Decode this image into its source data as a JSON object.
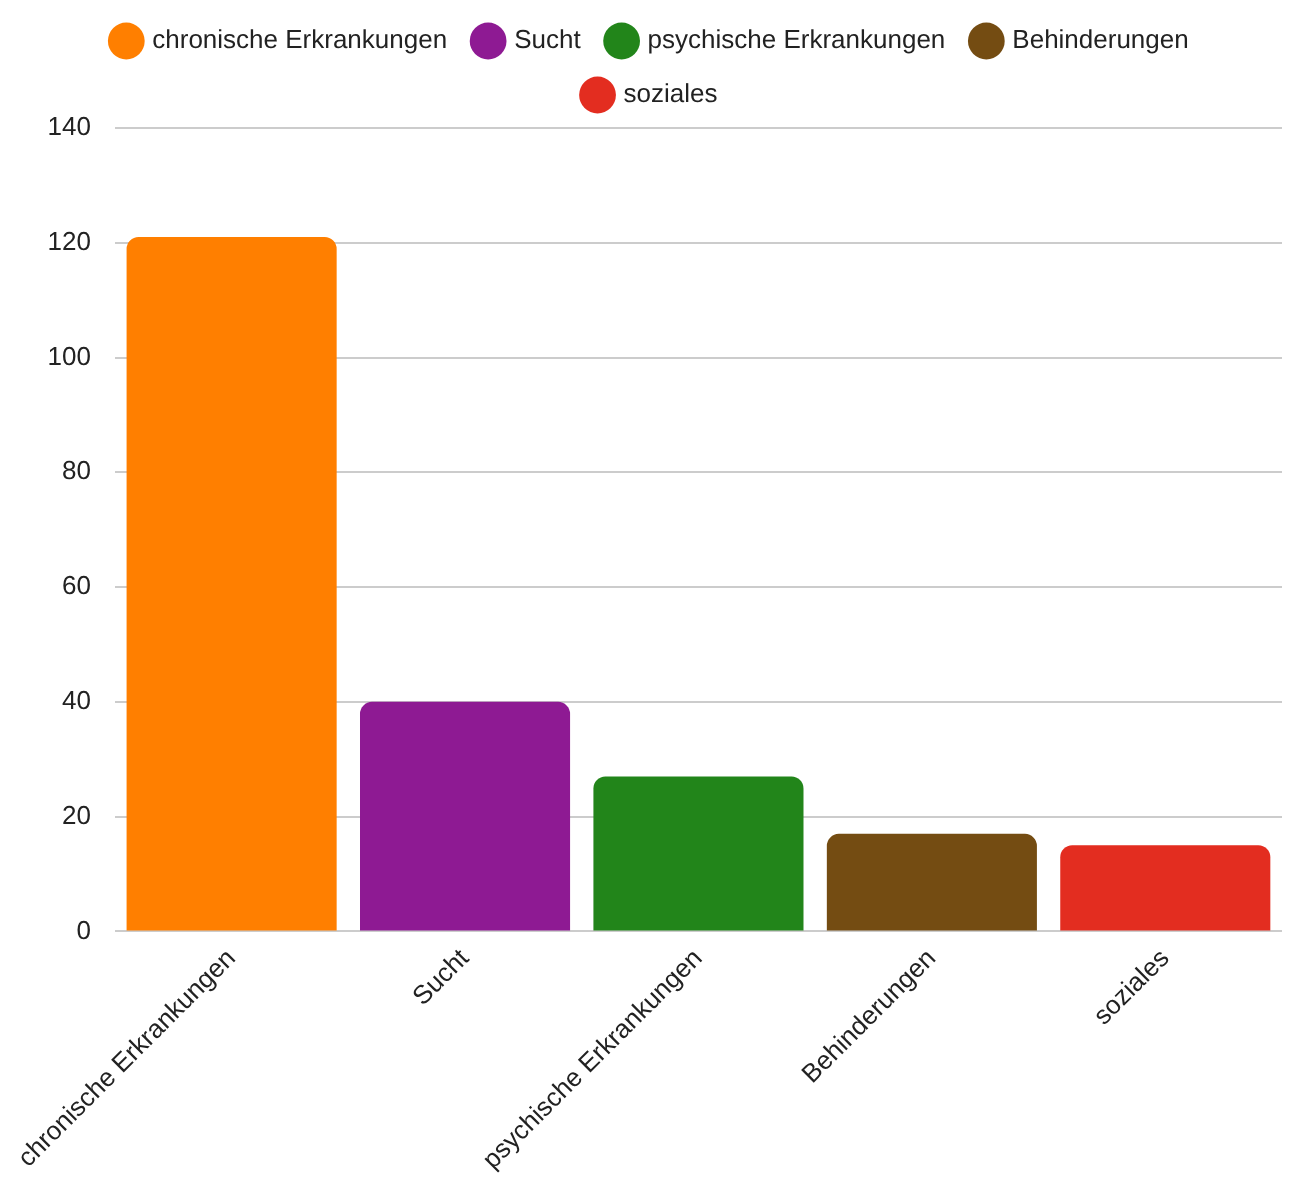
{
  "chart_data": {
    "type": "bar",
    "categories": [
      "chronische Erkrankungen",
      "Sucht",
      "psychische Erkrankungen",
      "Behinderungen",
      "soziales"
    ],
    "series": [
      {
        "name": "chronische Erkrankungen",
        "color": "#ff7f00",
        "values": [
          121,
          null,
          null,
          null,
          null
        ]
      },
      {
        "name": "Sucht",
        "color": "#8e1a93",
        "values": [
          null,
          40,
          null,
          null,
          null
        ]
      },
      {
        "name": "psychische Erkrankungen",
        "color": "#22851a",
        "values": [
          null,
          null,
          27,
          null,
          null
        ]
      },
      {
        "name": "Behinderungen",
        "color": "#744c12",
        "values": [
          null,
          null,
          null,
          17,
          null
        ]
      },
      {
        "name": "soziales",
        "color": "#e32d20",
        "values": [
          null,
          null,
          null,
          null,
          15
        ]
      }
    ],
    "stacked": true,
    "ylim": [
      0,
      140
    ],
    "yticks": [
      0,
      20,
      40,
      60,
      80,
      100,
      120,
      140
    ],
    "grid": "y",
    "legend": "top"
  }
}
